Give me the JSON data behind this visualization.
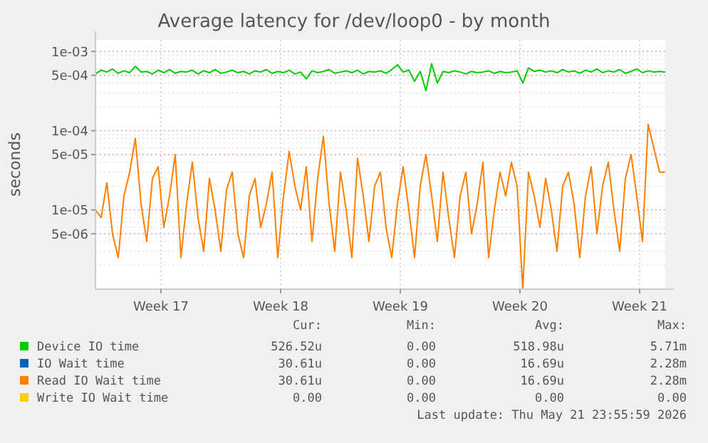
{
  "chart_data": {
    "type": "line",
    "title": "Average latency for /dev/loop0 - by month",
    "ylabel": "seconds",
    "log": "y",
    "grid": true,
    "legend": "bottom",
    "marker": "none",
    "line_style": "solid",
    "xlim": [
      "2026-04-18T16:00",
      "2026-05-22T00:00"
    ],
    "xticks": [
      {
        "value": "2026-04-22T12:00",
        "label": "Week 17"
      },
      {
        "value": "2026-04-29T12:00",
        "label": "Week 18"
      },
      {
        "value": "2026-05-06T12:00",
        "label": "Week 19"
      },
      {
        "value": "2026-05-13T12:00",
        "label": "Week 20"
      },
      {
        "value": "2026-05-20T12:00",
        "label": "Week 21"
      }
    ],
    "ylim": [
      1e-06,
      0.0014
    ],
    "yticks": [
      {
        "value": 5e-06,
        "label": "5e-06"
      },
      {
        "value": 1e-05,
        "label": "1e-05"
      },
      {
        "value": 5e-05,
        "label": "5e-05"
      },
      {
        "value": 0.0001,
        "label": "1e-04"
      },
      {
        "value": 0.0005,
        "label": "5e-04"
      },
      {
        "value": 0.001,
        "label": "1e-03"
      }
    ],
    "x": [
      "2026-04-18T16:00",
      "2026-04-19T00:00",
      "2026-04-19T08:00",
      "2026-04-19T16:00",
      "2026-04-20T00:00",
      "2026-04-20T08:00",
      "2026-04-20T16:00",
      "2026-04-21T00:00",
      "2026-04-21T08:00",
      "2026-04-21T16:00",
      "2026-04-22T00:00",
      "2026-04-22T08:00",
      "2026-04-22T16:00",
      "2026-04-23T00:00",
      "2026-04-23T08:00",
      "2026-04-23T16:00",
      "2026-04-24T00:00",
      "2026-04-24T08:00",
      "2026-04-24T16:00",
      "2026-04-25T00:00",
      "2026-04-25T08:00",
      "2026-04-25T16:00",
      "2026-04-26T00:00",
      "2026-04-26T08:00",
      "2026-04-26T16:00",
      "2026-04-27T00:00",
      "2026-04-27T08:00",
      "2026-04-27T16:00",
      "2026-04-28T00:00",
      "2026-04-28T08:00",
      "2026-04-28T16:00",
      "2026-04-29T00:00",
      "2026-04-29T08:00",
      "2026-04-29T16:00",
      "2026-04-30T00:00",
      "2026-04-30T08:00",
      "2026-04-30T16:00",
      "2026-05-01T00:00",
      "2026-05-01T08:00",
      "2026-05-01T16:00",
      "2026-05-02T00:00",
      "2026-05-02T08:00",
      "2026-05-02T16:00",
      "2026-05-03T00:00",
      "2026-05-03T08:00",
      "2026-05-03T16:00",
      "2026-05-04T00:00",
      "2026-05-04T08:00",
      "2026-05-04T16:00",
      "2026-05-05T00:00",
      "2026-05-05T08:00",
      "2026-05-05T16:00",
      "2026-05-06T00:00",
      "2026-05-06T08:00",
      "2026-05-06T16:00",
      "2026-05-07T00:00",
      "2026-05-07T08:00",
      "2026-05-07T16:00",
      "2026-05-08T00:00",
      "2026-05-08T08:00",
      "2026-05-08T16:00",
      "2026-05-09T00:00",
      "2026-05-09T08:00",
      "2026-05-09T16:00",
      "2026-05-10T00:00",
      "2026-05-10T08:00",
      "2026-05-10T16:00",
      "2026-05-11T00:00",
      "2026-05-11T08:00",
      "2026-05-11T16:00",
      "2026-05-12T00:00",
      "2026-05-12T08:00",
      "2026-05-12T16:00",
      "2026-05-13T00:00",
      "2026-05-13T08:00",
      "2026-05-13T16:00",
      "2026-05-14T00:00",
      "2026-05-14T08:00",
      "2026-05-14T16:00",
      "2026-05-15T00:00",
      "2026-05-15T08:00",
      "2026-05-15T16:00",
      "2026-05-16T00:00",
      "2026-05-16T08:00",
      "2026-05-16T16:00",
      "2026-05-17T00:00",
      "2026-05-17T08:00",
      "2026-05-17T16:00",
      "2026-05-18T00:00",
      "2026-05-18T08:00",
      "2026-05-18T16:00",
      "2026-05-19T00:00",
      "2026-05-19T08:00",
      "2026-05-19T16:00",
      "2026-05-20T00:00",
      "2026-05-20T08:00",
      "2026-05-20T16:00",
      "2026-05-21T00:00",
      "2026-05-21T08:00",
      "2026-05-21T16:00",
      "2026-05-22T00:00"
    ],
    "series": [
      {
        "name": "Device IO time",
        "color": "#00cc00",
        "values": [
          0.00052,
          0.00058,
          0.00055,
          0.0006,
          0.00053,
          0.00057,
          0.00054,
          0.00065,
          0.00055,
          0.00056,
          0.00052,
          0.00058,
          0.00054,
          0.00059,
          0.00053,
          0.00056,
          0.00055,
          0.00058,
          0.00052,
          0.00057,
          0.00054,
          0.00059,
          0.00053,
          0.00055,
          0.00058,
          0.00054,
          0.00056,
          0.00052,
          0.00057,
          0.00055,
          0.00059,
          0.00053,
          0.00056,
          0.00054,
          0.00058,
          0.00052,
          0.00055,
          0.00045,
          0.00057,
          0.00054,
          0.00056,
          0.00059,
          0.00053,
          0.00055,
          0.00057,
          0.00054,
          0.00058,
          0.00052,
          0.00056,
          0.00055,
          0.00057,
          0.00053,
          0.00059,
          0.00068,
          0.00055,
          0.00058,
          0.00042,
          0.00056,
          0.00032,
          0.0007,
          0.0004,
          0.00056,
          0.00054,
          0.00057,
          0.00055,
          0.00052,
          0.00056,
          0.00054,
          0.00055,
          0.00057,
          0.00053,
          0.00056,
          0.00054,
          0.00055,
          0.00057,
          0.0004,
          0.00062,
          0.00056,
          0.00058,
          0.00055,
          0.00057,
          0.00054,
          0.00059,
          0.00055,
          0.00057,
          0.00053,
          0.00058,
          0.00055,
          0.0006,
          0.00054,
          0.00057,
          0.00055,
          0.00059,
          0.00053,
          0.00056,
          0.0006,
          0.00054,
          0.00057,
          0.00055,
          0.00056,
          0.00055
        ]
      },
      {
        "name": "IO Wait time",
        "color": "#0066b3",
        "values": [
          null,
          null,
          null,
          null,
          null,
          null,
          null,
          null,
          null,
          null,
          null,
          null,
          null,
          null,
          null,
          null,
          null,
          null,
          null,
          null,
          null,
          null,
          null,
          null,
          null,
          null,
          null,
          null,
          null,
          null,
          null,
          null,
          null,
          null,
          null,
          null,
          null,
          null,
          null,
          null,
          null,
          null,
          null,
          null,
          null,
          null,
          null,
          null,
          null,
          null,
          null,
          null,
          null,
          null,
          null,
          null,
          null,
          null,
          null,
          null,
          null,
          null,
          null,
          null,
          null,
          null,
          null,
          null,
          null,
          null,
          null,
          null,
          null,
          null,
          null,
          null,
          null,
          null,
          null,
          null,
          null,
          null,
          null,
          null,
          null,
          null,
          null,
          null,
          null,
          null,
          null,
          null,
          null,
          null,
          null,
          null,
          null,
          null,
          null,
          null,
          null
        ]
      },
      {
        "name": "Read IO Wait time",
        "color": "#ff8000",
        "values": [
          1e-05,
          8e-06,
          2.2e-05,
          5e-06,
          2.5e-06,
          1.5e-05,
          3e-05,
          8e-05,
          1.2e-05,
          4e-06,
          2.5e-05,
          3.5e-05,
          6e-06,
          1.5e-05,
          5e-05,
          2.5e-06,
          1.2e-05,
          4e-05,
          8e-06,
          3e-06,
          2.5e-05,
          1e-05,
          3e-06,
          1.8e-05,
          3e-05,
          5e-06,
          2.5e-06,
          1.5e-05,
          2.5e-05,
          6e-06,
          1.2e-05,
          3e-05,
          2.5e-06,
          1.5e-05,
          5.5e-05,
          2e-05,
          1e-05,
          3.5e-05,
          4e-06,
          2.5e-05,
          8.5e-05,
          1.2e-05,
          3e-06,
          3e-05,
          1e-05,
          2.5e-06,
          4.5e-05,
          1.5e-05,
          4e-06,
          2e-05,
          3e-05,
          6e-06,
          2.5e-06,
          1.2e-05,
          3.5e-05,
          1e-05,
          2.5e-06,
          2e-05,
          5e-05,
          1.5e-05,
          4e-06,
          3e-05,
          8e-06,
          2.5e-06,
          1.5e-05,
          3e-05,
          5e-06,
          1.2e-05,
          4e-05,
          2.5e-06,
          1e-05,
          3e-05,
          1.5e-05,
          4e-05,
          2e-05,
          1e-06,
          3e-05,
          1.5e-05,
          6e-06,
          2.5e-05,
          1e-05,
          3e-06,
          2e-05,
          3e-05,
          1.2e-05,
          2.5e-06,
          1.5e-05,
          3.5e-05,
          5e-06,
          2e-05,
          4e-05,
          1e-05,
          3e-06,
          2.5e-05,
          5e-05,
          1.5e-05,
          4e-06,
          0.00012,
          6e-05,
          3e-05,
          3e-05
        ]
      },
      {
        "name": "Write IO Wait time",
        "color": "#ffcc00",
        "values": [
          null,
          null,
          null,
          null,
          null,
          null,
          null,
          null,
          null,
          null,
          null,
          null,
          null,
          null,
          null,
          null,
          null,
          null,
          null,
          null,
          null,
          null,
          null,
          null,
          null,
          null,
          null,
          null,
          null,
          null,
          null,
          null,
          null,
          null,
          null,
          null,
          null,
          null,
          null,
          null,
          null,
          null,
          null,
          null,
          null,
          null,
          null,
          null,
          null,
          null,
          null,
          null,
          null,
          null,
          null,
          null,
          null,
          null,
          null,
          null,
          null,
          null,
          null,
          null,
          null,
          null,
          null,
          null,
          null,
          null,
          null,
          null,
          null,
          null,
          null,
          null,
          null,
          null,
          null,
          null,
          null,
          null,
          null,
          null,
          null,
          null,
          null,
          null,
          null,
          null,
          null,
          null,
          null,
          null,
          null,
          null,
          null,
          null,
          null,
          null,
          null
        ]
      }
    ],
    "annotations": [
      "Cur:",
      "Min:",
      "Avg:",
      "Max:",
      "526.52u",
      "0.00",
      "518.98u",
      "5.71m",
      "30.61u",
      "0.00",
      "16.69u",
      "2.28m",
      "30.61u",
      "0.00",
      "16.69u",
      "2.28m",
      "0.00",
      "0.00",
      "0.00",
      "0.00",
      "Last update: Thu May 21 23:55:59 2026"
    ]
  }
}
